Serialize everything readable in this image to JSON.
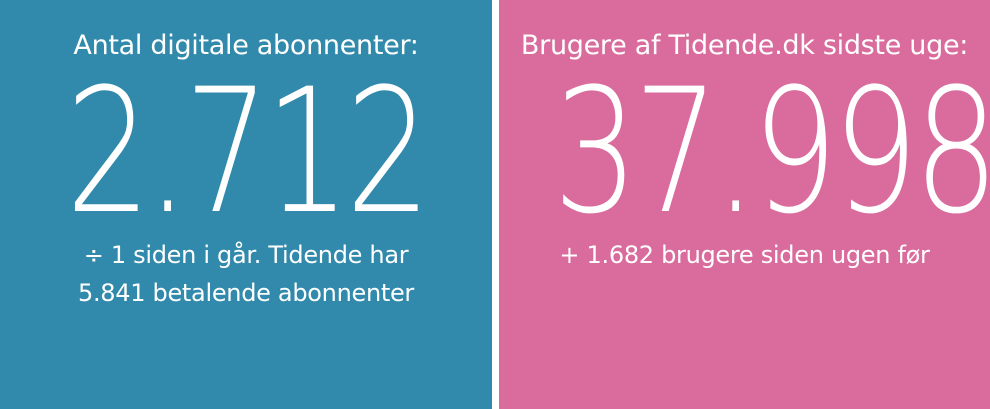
{
  "colors": {
    "left_panel": "#318aab",
    "right_panel": "#d96c9d",
    "gutter": "#ffffff",
    "text": "#ffffff"
  },
  "left_panel": {
    "label": "Antal digitale abonnenter:",
    "value": "2.712",
    "sub_line1": "÷ 1 siden i går. Tidende har",
    "sub_line2": "5.841 betalende abonnenter"
  },
  "right_panel": {
    "label": "Brugere af Tidende.dk sidste uge:",
    "value": "37.998",
    "sub_line1": "+ 1.682 brugere siden ugen før"
  }
}
